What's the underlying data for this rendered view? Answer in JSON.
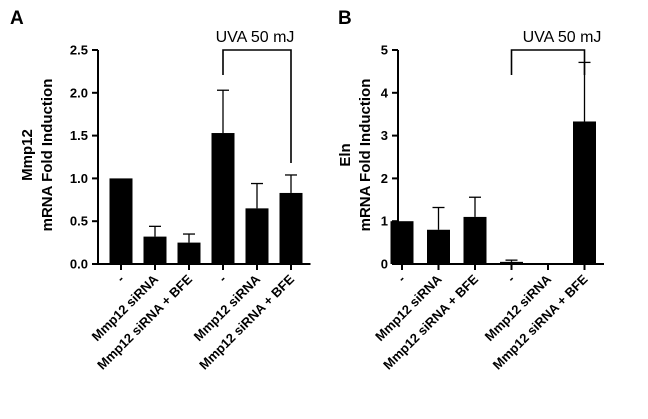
{
  "chart_data": [
    {
      "panel": "A",
      "type": "bar",
      "ylabel_lines": [
        "Mmp12",
        "mRNA Fold Induction"
      ],
      "categories": [
        "-",
        "Mmp12 siRNA",
        "Mmp12 siRNA + BFE",
        "-",
        "Mmp12 siRNA",
        "Mmp12 siRNA + BFE"
      ],
      "values": [
        1.0,
        0.32,
        0.25,
        1.53,
        0.65,
        0.83
      ],
      "error": [
        0.0,
        0.12,
        0.1,
        0.5,
        0.29,
        0.21
      ],
      "ylim": [
        0,
        2.5
      ],
      "yticks": [
        "0.0",
        "0.5",
        "1.0",
        "1.5",
        "2.0",
        "2.5"
      ],
      "annotation": "UVA 50 mJ",
      "bracket_from": 3,
      "bracket_to": 5
    },
    {
      "panel": "B",
      "type": "bar",
      "ylabel_lines": [
        "Eln",
        "mRNA Fold Induction"
      ],
      "categories": [
        "-",
        "Mmp12 siRNA",
        "Mmp12 siRNA + BFE",
        "-",
        "Mmp12 siRNA",
        "Mmp12 siRNA + BFE"
      ],
      "values": [
        1.0,
        0.8,
        1.1,
        0.05,
        0.0,
        3.33
      ],
      "error": [
        0.0,
        0.52,
        0.46,
        0.04,
        0.0,
        1.38
      ],
      "ylim": [
        0,
        5
      ],
      "yticks": [
        "0",
        "1",
        "2",
        "3",
        "4",
        "5"
      ],
      "annotation": "UVA 50 mJ",
      "bracket_from": 3,
      "bracket_to": 5
    }
  ],
  "style": {
    "bar_color": "#000000",
    "axis_color": "#000000"
  }
}
